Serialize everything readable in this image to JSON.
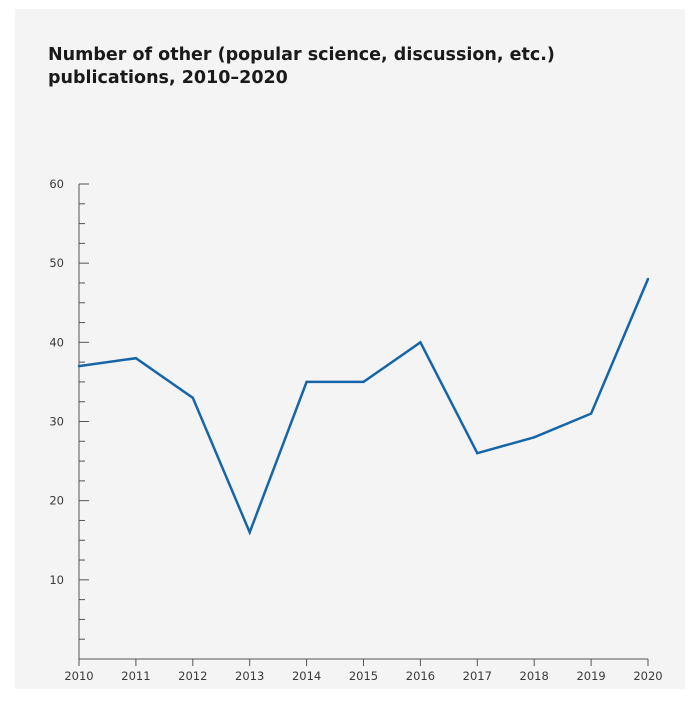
{
  "chart_data": {
    "type": "line",
    "title": "Number of other (popular science, discussion, etc.) publications, 2010–2020",
    "xlabel": "",
    "ylabel": "",
    "x": [
      "2010",
      "2011",
      "2012",
      "2013",
      "2014",
      "2015",
      "2016",
      "2017",
      "2018",
      "2019",
      "2020"
    ],
    "series": [
      {
        "values": [
          37,
          38,
          33,
          16,
          35,
          35,
          40,
          26,
          28,
          31,
          48
        ]
      }
    ],
    "ylim": [
      0,
      60
    ],
    "yticks": [
      10,
      20,
      30,
      40,
      50,
      60
    ],
    "grid": false,
    "colors": {
      "line": "#1565a8",
      "axis": "#555555",
      "background": "#f4f4f4"
    }
  }
}
